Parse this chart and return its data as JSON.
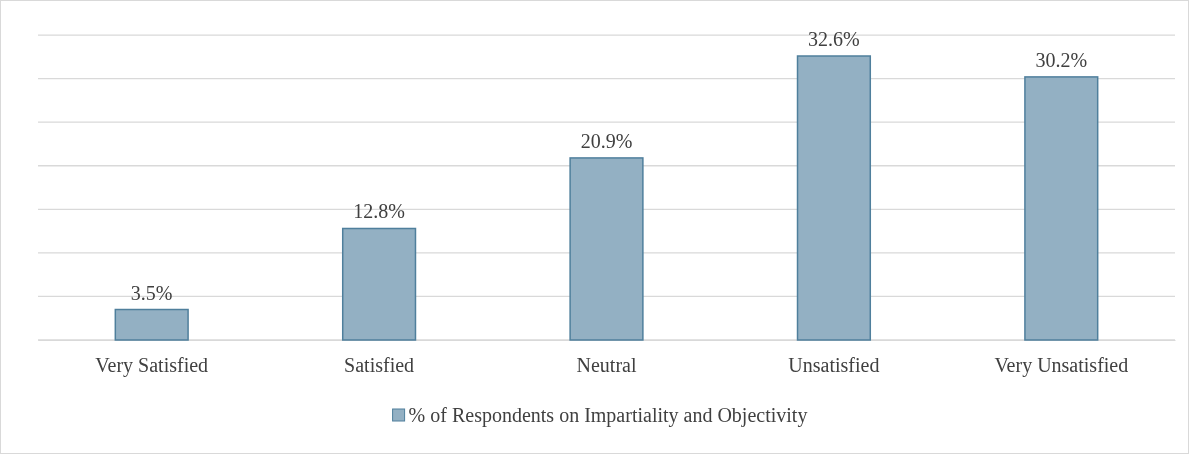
{
  "chart_data": {
    "type": "bar",
    "categories": [
      "Very Satisfied",
      "Satisfied",
      "Neutral",
      "Unsatisfied",
      "Very Unsatisfied"
    ],
    "series": [
      {
        "name": "% of Respondents on Impartiality and Objectivity",
        "color": "#93b0c3",
        "values": [
          3.5,
          12.8,
          20.9,
          32.6,
          30.2
        ],
        "value_labels": [
          "3.5%",
          "12.8%",
          "20.9%",
          "32.6%",
          "30.2%"
        ]
      }
    ],
    "grid": "y",
    "legend": "bottom",
    "tick_labels": "x"
  }
}
